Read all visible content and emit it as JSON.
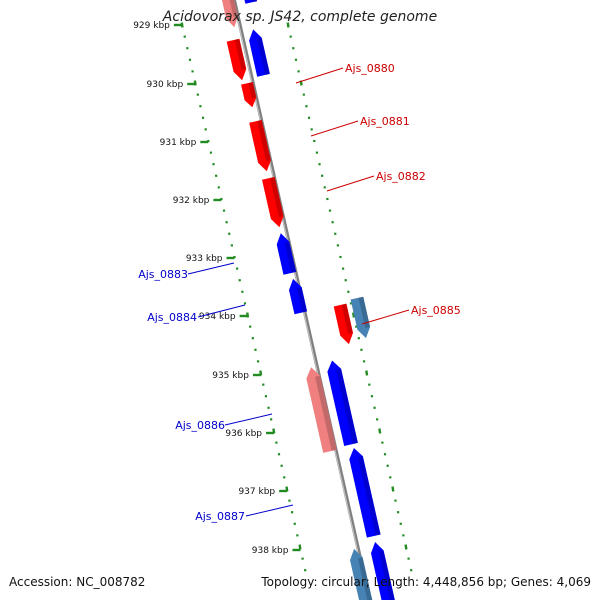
{
  "title": "Acidovorax sp. JS42, complete genome",
  "footer": {
    "accession": "Accession: NC_008782",
    "summary": "Topology: circular; Length: 4,448,856 bp; Genes: 4,069"
  },
  "ticks": [
    "929 kbp",
    "930 kbp",
    "931 kbp",
    "932 kbp",
    "933 kbp",
    "934 kbp",
    "935 kbp",
    "936 kbp",
    "937 kbp",
    "938 kbp"
  ],
  "colors": {
    "forward_gene": "#ff0000",
    "reverse_gene": "#0000ff",
    "pale_red": "#f08080",
    "steel_blue": "#4682b4",
    "backbone": "#808080",
    "tick": "#228b22",
    "label_red": "#cc0000",
    "label_blue": "#0000cc"
  },
  "genes": [
    {
      "id": "Ajs_0880",
      "label": "Ajs_0880",
      "labeled": true,
      "strand": "reverse",
      "color": "blue"
    },
    {
      "id": "Ajs_0881",
      "label": "Ajs_0881",
      "labeled": true,
      "strand": "forward",
      "color": "red"
    },
    {
      "id": "Ajs_0882",
      "label": "Ajs_0882",
      "labeled": true,
      "strand": "forward",
      "color": "red"
    },
    {
      "id": "Ajs_0883",
      "label": "Ajs_0883",
      "labeled": true,
      "strand": "reverse",
      "color": "blue"
    },
    {
      "id": "Ajs_0884",
      "label": "Ajs_0884",
      "labeled": true,
      "strand": "reverse",
      "color": "blue"
    },
    {
      "id": "Ajs_0885",
      "label": "Ajs_0885",
      "labeled": true,
      "strand": "forward",
      "color": "red"
    },
    {
      "id": "Ajs_0886",
      "label": "Ajs_0886",
      "labeled": true,
      "strand": "reverse",
      "color": "pale_red"
    },
    {
      "id": "Ajs_0887",
      "label": "Ajs_0887",
      "labeled": true,
      "strand": "reverse",
      "color": "blue"
    }
  ]
}
